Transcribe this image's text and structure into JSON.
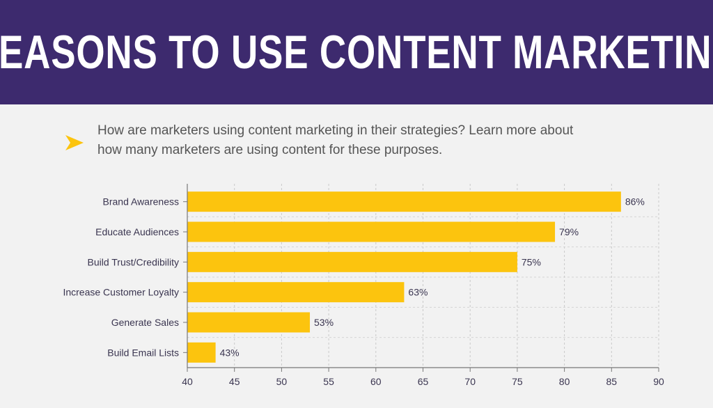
{
  "header": {
    "title": "REASONS TO USE CONTENT MARKETING"
  },
  "intro": {
    "icon": "arrow-right-icon",
    "text": "How are marketers using content marketing in their strategies? Learn more about how many marketers are using content for these purposes."
  },
  "colors": {
    "banner": "#3d2a6e",
    "bar": "#fcc40e",
    "accent_arrow": "#fcc40e",
    "label_text": "#3a3550"
  },
  "chart_data": {
    "type": "bar",
    "orientation": "horizontal",
    "categories": [
      "Brand Awareness",
      "Educate Audiences",
      "Build Trust/Credibility",
      "Increase Customer Loyalty",
      "Generate Sales",
      "Build Email Lists"
    ],
    "values": [
      86,
      79,
      75,
      63,
      53,
      43
    ],
    "data_labels": [
      "86%",
      "79%",
      "75%",
      "63%",
      "53%",
      "43%"
    ],
    "xlim": [
      40,
      90
    ],
    "xticks": [
      40,
      45,
      50,
      55,
      60,
      65,
      70,
      75,
      80,
      85,
      90
    ],
    "title": "",
    "xlabel": "",
    "ylabel": "",
    "grid": true,
    "grid_style": "dashed"
  }
}
